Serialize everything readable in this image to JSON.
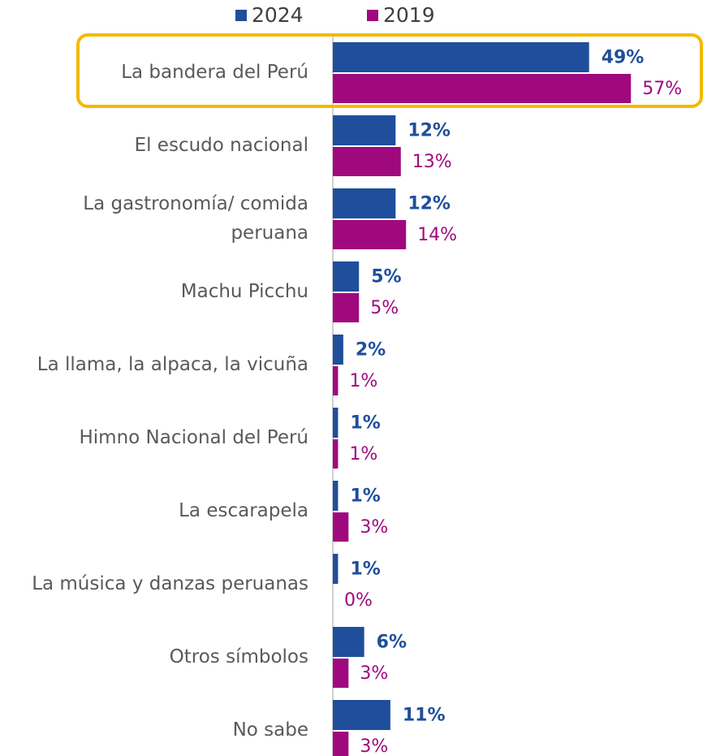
{
  "chart_data": {
    "type": "bar",
    "orientation": "horizontal",
    "categories": [
      "La bandera del Perú",
      "El escudo nacional",
      "La gastronomía/ comida peruana",
      "Machu Picchu",
      "La llama, la alpaca, la vicuña",
      "Himno Nacional del Perú",
      "La escarapela",
      "La música y danzas peruanas",
      "Otros símbolos",
      "No sabe"
    ],
    "series": [
      {
        "name": "2024",
        "color": "#1f4e9c",
        "values": [
          49,
          12,
          12,
          5,
          2,
          1,
          1,
          1,
          6,
          11
        ],
        "value_labels": [
          "49%",
          "12%",
          "12%",
          "5%",
          "2%",
          "1%",
          "1%",
          "1%",
          "6%",
          "11%"
        ]
      },
      {
        "name": "2019",
        "color": "#a0097e",
        "values": [
          57,
          13,
          14,
          5,
          1,
          1,
          3,
          0,
          3,
          3
        ],
        "value_labels": [
          "57%",
          "13%",
          "14%",
          "5%",
          "1%",
          "1%",
          "3%",
          "0%",
          "3%",
          "3%"
        ]
      }
    ],
    "xlim": [
      0,
      70
    ],
    "legend": "top",
    "highlight_color": "#f5b800"
  }
}
